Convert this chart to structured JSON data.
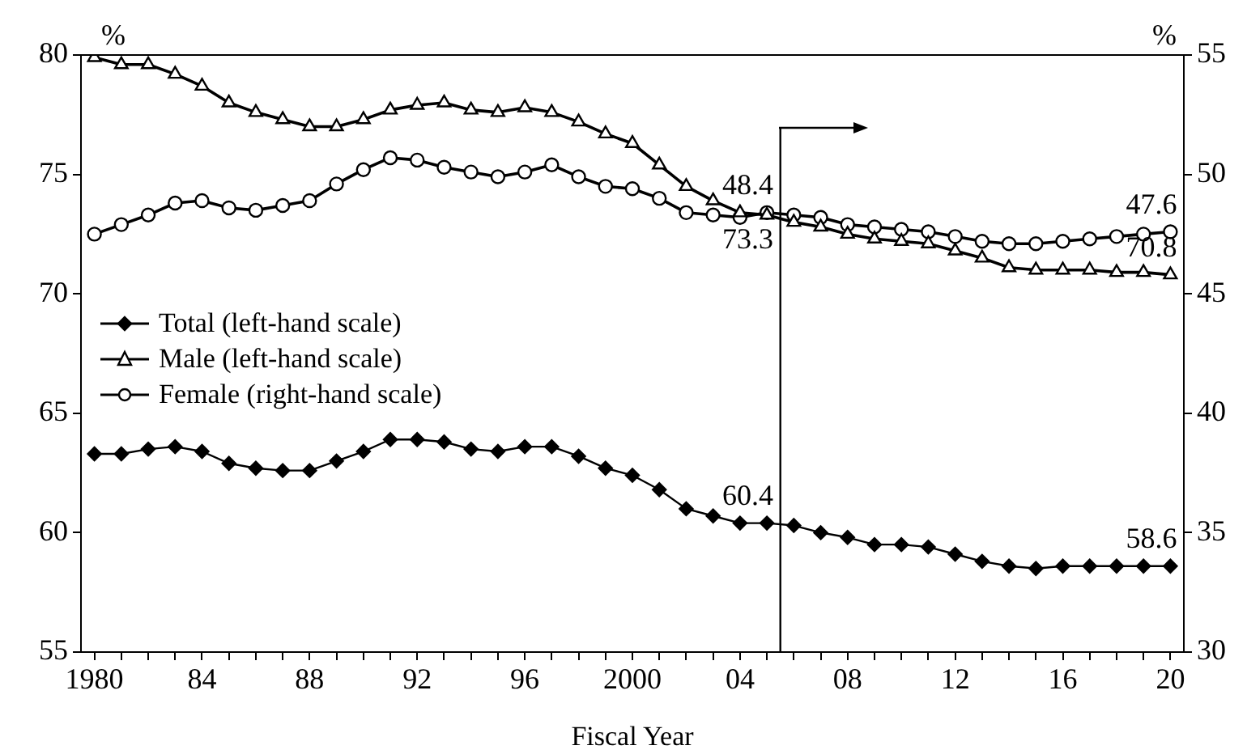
{
  "chart_data": {
    "type": "line",
    "xlabel": "Fiscal Year",
    "ylabel": "%",
    "y2label": "%",
    "x": [
      1980,
      1981,
      1982,
      1983,
      1984,
      1985,
      1986,
      1987,
      1988,
      1989,
      1990,
      1991,
      1992,
      1993,
      1994,
      1995,
      1996,
      1997,
      1998,
      1999,
      2000,
      2001,
      2002,
      2003,
      2004,
      2005,
      2006,
      2007,
      2008,
      2009,
      2010,
      2011,
      2012,
      2013,
      2014,
      2015,
      2016,
      2017,
      2018,
      2019,
      2020
    ],
    "series": [
      {
        "name": "Total (left-hand scale)",
        "color": "#000000",
        "marker": "diamond",
        "values": [
          63.3,
          63.3,
          63.5,
          63.6,
          63.4,
          62.9,
          62.7,
          62.6,
          62.6,
          63.0,
          63.4,
          63.9,
          63.9,
          63.8,
          63.5,
          63.4,
          63.6,
          63.6,
          63.2,
          62.7,
          62.4,
          61.8,
          61.0,
          60.7,
          60.4,
          60.4,
          60.3,
          60.0,
          59.8,
          59.5,
          59.5,
          59.4,
          59.1,
          58.8,
          58.6,
          58.5,
          58.6,
          58.6,
          58.6,
          58.6,
          58.6
        ],
        "value_labels": [
          null,
          null,
          null,
          null,
          null,
          null,
          null,
          null,
          null,
          null,
          null,
          null,
          null,
          null,
          null,
          null,
          null,
          null,
          null,
          null,
          null,
          null,
          null,
          null,
          null,
          "60.4",
          null,
          null,
          null,
          null,
          null,
          null,
          null,
          null,
          null,
          null,
          null,
          null,
          null,
          null,
          "58.6"
        ]
      },
      {
        "name": "Male (left-hand scale)",
        "color": "#000000",
        "marker": "triangle",
        "values": [
          79.9,
          79.6,
          79.6,
          79.2,
          78.7,
          78.0,
          77.6,
          77.3,
          77.0,
          77.0,
          77.3,
          77.7,
          77.9,
          78.0,
          77.7,
          77.6,
          77.8,
          77.6,
          77.2,
          76.7,
          76.3,
          75.4,
          74.5,
          73.9,
          73.4,
          73.3,
          73.0,
          72.8,
          72.5,
          72.3,
          72.2,
          72.1,
          71.8,
          71.5,
          71.1,
          71.0,
          71.0,
          71.0,
          70.9,
          70.9,
          70.8
        ],
        "value_labels": [
          null,
          null,
          null,
          null,
          null,
          null,
          null,
          null,
          null,
          null,
          null,
          null,
          null,
          null,
          null,
          null,
          null,
          null,
          null,
          null,
          null,
          null,
          null,
          null,
          null,
          "73.3",
          null,
          null,
          null,
          null,
          null,
          null,
          null,
          null,
          null,
          null,
          null,
          null,
          null,
          null,
          "70.8"
        ]
      },
      {
        "name": "Female (right-hand scale)",
        "color": "#000000",
        "marker": "circle",
        "axis": "y2",
        "values": [
          47.5,
          47.9,
          48.3,
          48.8,
          48.9,
          48.6,
          48.5,
          48.7,
          48.9,
          49.6,
          50.2,
          50.7,
          50.6,
          50.3,
          50.1,
          49.9,
          50.1,
          50.4,
          49.9,
          49.5,
          49.4,
          49.0,
          48.4,
          48.3,
          48.2,
          48.4,
          48.3,
          48.2,
          47.9,
          47.8,
          47.7,
          47.6,
          47.4,
          47.2,
          47.1,
          47.1,
          47.2,
          47.3,
          47.4,
          47.5,
          47.6
        ],
        "value_labels": [
          null,
          null,
          null,
          null,
          null,
          null,
          null,
          null,
          null,
          null,
          null,
          null,
          null,
          null,
          null,
          null,
          null,
          null,
          null,
          null,
          null,
          null,
          null,
          null,
          null,
          "48.4",
          null,
          null,
          null,
          null,
          null,
          null,
          null,
          null,
          null,
          null,
          null,
          null,
          null,
          null,
          "47.6"
        ]
      }
    ],
    "xlim": [
      1979.5,
      2020.5
    ],
    "xticks": [
      {
        "value": 1980,
        "label": "1980"
      },
      {
        "value": 1981,
        "label": null
      },
      {
        "value": 1982,
        "label": null
      },
      {
        "value": 1983,
        "label": null
      },
      {
        "value": 1984,
        "label": "84"
      },
      {
        "value": 1985,
        "label": null
      },
      {
        "value": 1986,
        "label": null
      },
      {
        "value": 1987,
        "label": null
      },
      {
        "value": 1988,
        "label": "88"
      },
      {
        "value": 1989,
        "label": null
      },
      {
        "value": 1990,
        "label": null
      },
      {
        "value": 1991,
        "label": null
      },
      {
        "value": 1992,
        "label": "92"
      },
      {
        "value": 1993,
        "label": null
      },
      {
        "value": 1994,
        "label": null
      },
      {
        "value": 1995,
        "label": null
      },
      {
        "value": 1996,
        "label": "96"
      },
      {
        "value": 1997,
        "label": null
      },
      {
        "value": 1998,
        "label": null
      },
      {
        "value": 1999,
        "label": null
      },
      {
        "value": 2000,
        "label": "2000"
      },
      {
        "value": 2001,
        "label": null
      },
      {
        "value": 2002,
        "label": null
      },
      {
        "value": 2003,
        "label": null
      },
      {
        "value": 2004,
        "label": "04"
      },
      {
        "value": 2005,
        "label": null
      },
      {
        "value": 2006,
        "label": null
      },
      {
        "value": 2007,
        "label": null
      },
      {
        "value": 2008,
        "label": "08"
      },
      {
        "value": 2009,
        "label": null
      },
      {
        "value": 2010,
        "label": null
      },
      {
        "value": 2011,
        "label": null
      },
      {
        "value": 2012,
        "label": "12"
      },
      {
        "value": 2013,
        "label": null
      },
      {
        "value": 2014,
        "label": null
      },
      {
        "value": 2015,
        "label": null
      },
      {
        "value": 2016,
        "label": "16"
      },
      {
        "value": 2017,
        "label": null
      },
      {
        "value": 2018,
        "label": null
      },
      {
        "value": 2019,
        "label": null
      },
      {
        "value": 2020,
        "label": "20"
      }
    ],
    "ylim": [
      55,
      80
    ],
    "yticks": [
      55,
      60,
      65,
      70,
      75,
      80
    ],
    "y2lim": [
      30,
      55
    ],
    "y2ticks": [
      30,
      35,
      40,
      45,
      50,
      55
    ],
    "ref_lines": [
      {
        "axis": "x",
        "value": 2005.5,
        "color": "#000000"
      }
    ],
    "grid": false,
    "legend": "left",
    "line_style": "solid"
  }
}
